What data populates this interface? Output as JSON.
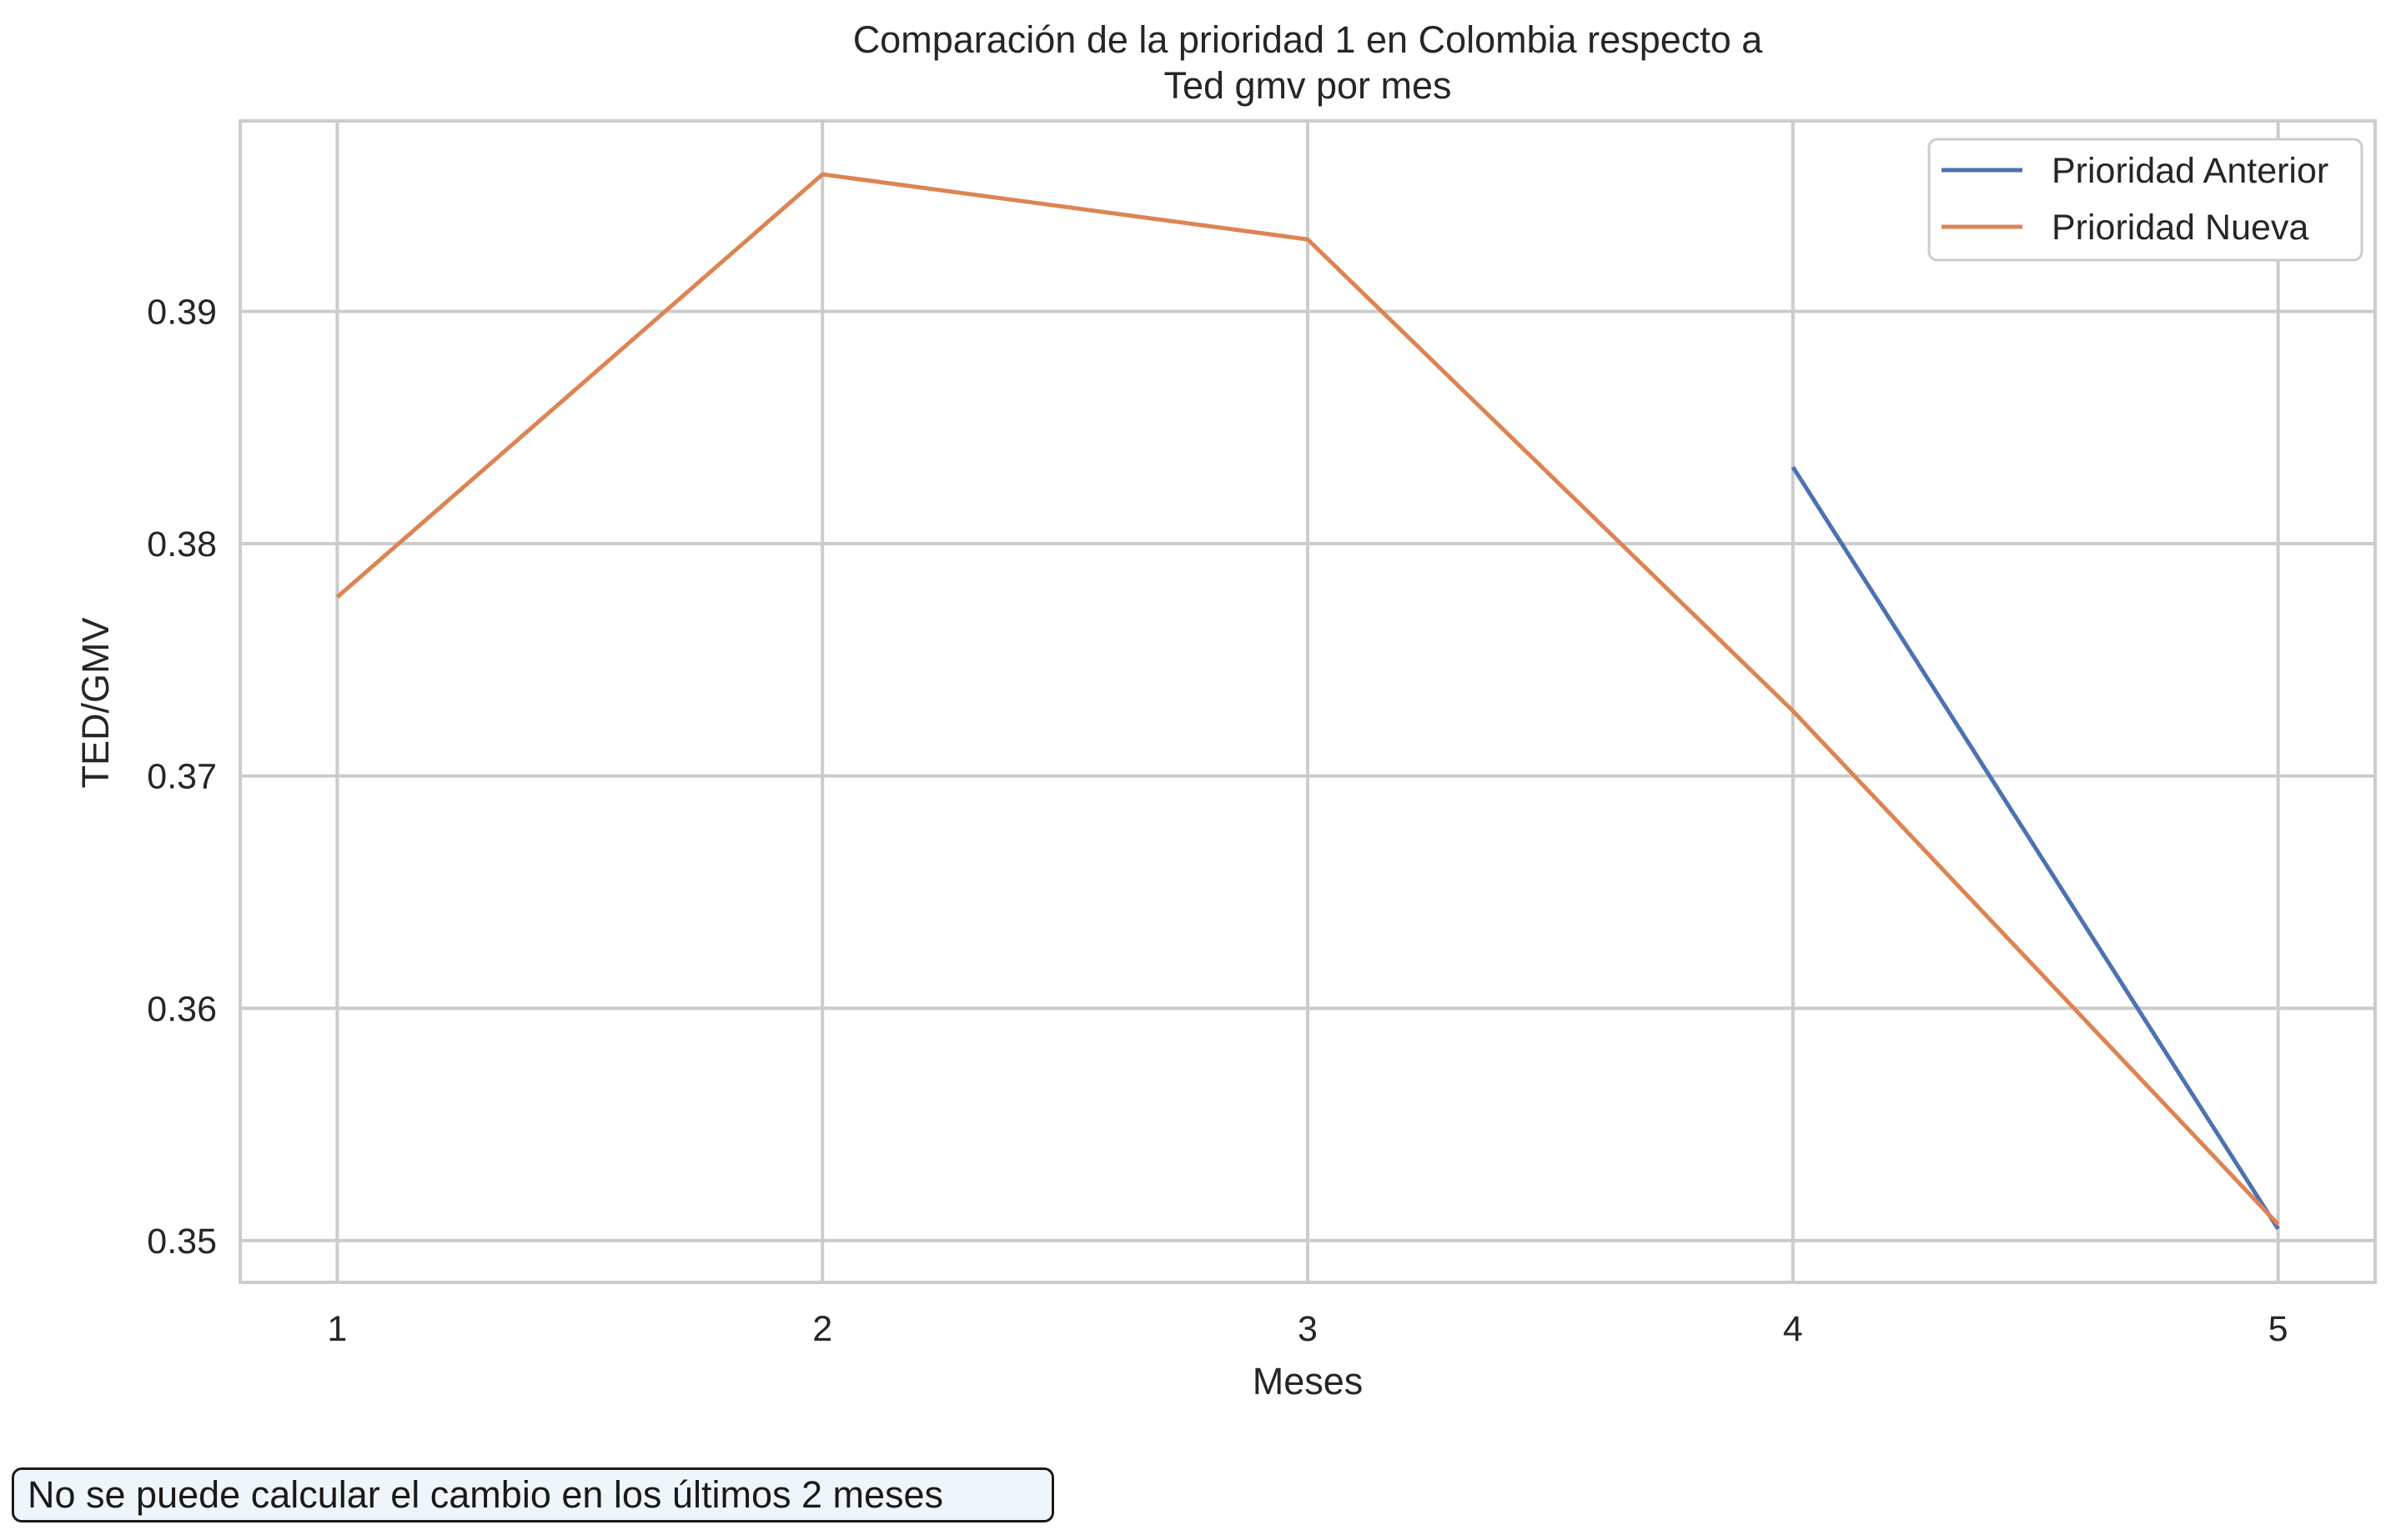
{
  "chart_data": {
    "type": "line",
    "title_lines": [
      "Comparación de la prioridad 1 en Colombia respecto a",
      "Ted gmv por mes"
    ],
    "xlabel": "Meses",
    "ylabel": "TED/GMV",
    "x_ticks": [
      1,
      2,
      3,
      4,
      5
    ],
    "y_ticks": [
      "0.35",
      "0.36",
      "0.37",
      "0.38",
      "0.39"
    ],
    "xlim": [
      0.8,
      5.2
    ],
    "ylim": [
      0.3482,
      0.3982
    ],
    "grid": true,
    "legend_position": "top-right",
    "series": [
      {
        "name": "Prioridad Anterior",
        "color": "#4c72b0",
        "x": [
          4,
          5
        ],
        "y": [
          0.3833,
          0.3505
        ]
      },
      {
        "name": "Prioridad Nueva",
        "color": "#dd8452",
        "x": [
          1,
          2,
          3,
          4,
          5
        ],
        "y": [
          0.3777,
          0.3959,
          0.3931,
          0.3728,
          0.3507
        ]
      }
    ]
  },
  "note": "No se puede calcular el cambio en los últimos 2 meses"
}
